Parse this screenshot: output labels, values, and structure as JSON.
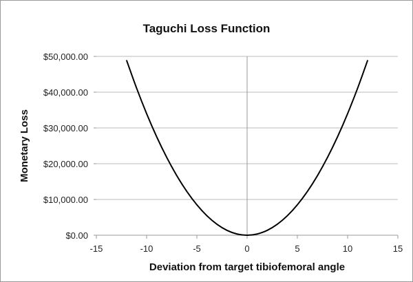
{
  "chart_data": {
    "type": "line",
    "title": "Taguchi Loss Function",
    "xlabel": "Deviation from target tibiofemoral angle",
    "ylabel": "Monetary Loss",
    "xlim": [
      -15,
      15
    ],
    "ylim": [
      0,
      50000
    ],
    "xticks": [
      "-15",
      "-10",
      "-5",
      "0",
      "5",
      "10",
      "15"
    ],
    "xtick_values": [
      -15,
      -10,
      -5,
      0,
      5,
      10,
      15
    ],
    "yticks": [
      "$0.00",
      "$10,000.00",
      "$20,000.00",
      "$30,000.00",
      "$40,000.00",
      "$50,000.00"
    ],
    "ytick_values": [
      0,
      10000,
      20000,
      30000,
      40000,
      50000
    ],
    "grid": "horizontal",
    "legend": "none",
    "series": [
      {
        "color": "#000000",
        "x": [
          -12,
          -11,
          -10,
          -9,
          -8,
          -7,
          -6,
          -5,
          -4,
          -3,
          -2,
          -1,
          0,
          1,
          2,
          3,
          4,
          5,
          6,
          7,
          8,
          9,
          10,
          11,
          12
        ],
        "y": [
          48960,
          41140,
          34000,
          27540,
          21760,
          16660,
          12240,
          8500,
          5440,
          3060,
          1360,
          340,
          0,
          340,
          1360,
          3060,
          5440,
          8500,
          12240,
          16660,
          21760,
          27540,
          34000,
          41140,
          48960
        ]
      }
    ]
  }
}
